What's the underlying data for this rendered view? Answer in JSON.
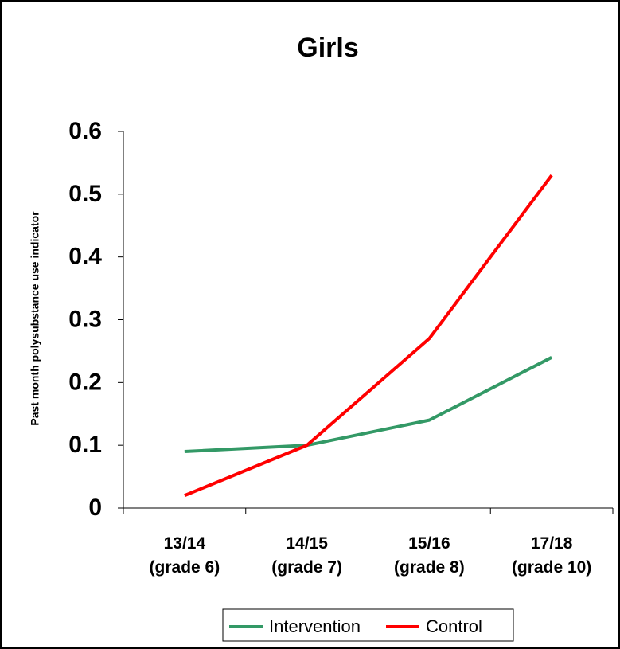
{
  "chart_data": {
    "type": "line",
    "title": "Girls",
    "y_label": "Past month polysubstance use indicator",
    "categories": [
      "13/14\n(grade 6)",
      "14/15\n(grade 7)",
      "15/16\n(grade 8)",
      "17/18\n(grade 10)"
    ],
    "series": [
      {
        "name": "Intervention",
        "color": "#339966",
        "values": [
          0.09,
          0.1,
          0.14,
          0.24
        ]
      },
      {
        "name": "Control",
        "color": "#ff0000",
        "values": [
          0.02,
          0.1,
          0.27,
          0.53
        ]
      }
    ],
    "ylim": [
      0,
      0.6
    ],
    "yticks": [
      0,
      0.1,
      0.2,
      0.3,
      0.4,
      0.5,
      0.6
    ],
    "legend": "bottom"
  }
}
